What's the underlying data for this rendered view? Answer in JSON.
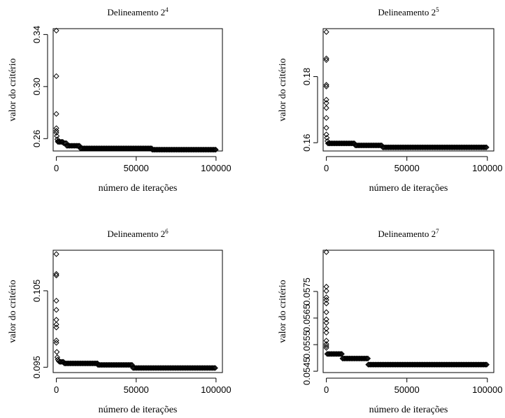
{
  "chart_data": [
    {
      "type": "scatter",
      "title": "Delineamento 2",
      "title_exponent": "4",
      "xlabel": "número de iterações",
      "ylabel": "valor do critério",
      "xlim": [
        -2000,
        104000
      ],
      "ylim": [
        0.2505,
        0.3445
      ],
      "xticks": [
        0,
        50000,
        100000
      ],
      "xtick_labels": [
        "0",
        "50000",
        "100000"
      ],
      "yticks": [
        0.26,
        0.3,
        0.34
      ],
      "ytick_labels": [
        "0.26",
        "0.30",
        "0.34"
      ],
      "grid": false,
      "marker": "open-diamond",
      "early_points": [
        {
          "x": 0,
          "y": 0.343
        },
        {
          "x": 0,
          "y": 0.308
        },
        {
          "x": 0,
          "y": 0.279
        },
        {
          "x": 0,
          "y": 0.268
        },
        {
          "x": 0,
          "y": 0.266
        },
        {
          "x": 0,
          "y": 0.2645
        },
        {
          "x": 300,
          "y": 0.262
        },
        {
          "x": 600,
          "y": 0.2595
        },
        {
          "x": 900,
          "y": 0.258
        }
      ],
      "plateaus": [
        {
          "x_start": 1000,
          "x_end": 4500,
          "y": 0.2575
        },
        {
          "x_start": 4500,
          "x_end": 6500,
          "y": 0.2565
        },
        {
          "x_start": 6500,
          "x_end": 15000,
          "y": 0.2545
        },
        {
          "x_start": 15000,
          "x_end": 60000,
          "y": 0.2525
        },
        {
          "x_start": 60000,
          "x_end": 100000,
          "y": 0.2515
        }
      ]
    },
    {
      "type": "scatter",
      "title": "Delineamento 2",
      "title_exponent": "5",
      "xlabel": "número de iterações",
      "ylabel": "valor do critério",
      "xlim": [
        -2000,
        104000
      ],
      "ylim": [
        0.1575,
        0.1945
      ],
      "xticks": [
        0,
        50000,
        100000
      ],
      "xtick_labels": [
        "0",
        "50000",
        "100000"
      ],
      "yticks": [
        0.16,
        0.18
      ],
      "ytick_labels": [
        "0.16",
        "0.18"
      ],
      "grid": false,
      "marker": "open-diamond",
      "early_points": [
        {
          "x": 0,
          "y": 0.1935
        },
        {
          "x": 0,
          "y": 0.1855
        },
        {
          "x": 0,
          "y": 0.185
        },
        {
          "x": 0,
          "y": 0.1775
        },
        {
          "x": 0,
          "y": 0.177
        },
        {
          "x": 0,
          "y": 0.173
        },
        {
          "x": 0,
          "y": 0.172
        },
        {
          "x": 0,
          "y": 0.1705
        },
        {
          "x": 0,
          "y": 0.1675
        },
        {
          "x": 0,
          "y": 0.1645
        },
        {
          "x": 0,
          "y": 0.1625
        },
        {
          "x": 300,
          "y": 0.1615
        },
        {
          "x": 600,
          "y": 0.1605
        }
      ],
      "plateaus": [
        {
          "x_start": 1000,
          "x_end": 18000,
          "y": 0.1598
        },
        {
          "x_start": 18000,
          "x_end": 35000,
          "y": 0.1592
        },
        {
          "x_start": 35000,
          "x_end": 100000,
          "y": 0.1586
        }
      ]
    },
    {
      "type": "scatter",
      "title": "Delineamento 2",
      "title_exponent": "6",
      "xlabel": "número de iterações",
      "ylabel": "valor do critério",
      "xlim": [
        -2000,
        104000
      ],
      "ylim": [
        0.0943,
        0.1103
      ],
      "xticks": [
        0,
        50000,
        100000
      ],
      "xtick_labels": [
        "0",
        "50000",
        "100000"
      ],
      "yticks": [
        0.095,
        0.105
      ],
      "ytick_labels": [
        "0.095",
        "0.105"
      ],
      "grid": false,
      "marker": "open-diamond",
      "early_points": [
        {
          "x": 0,
          "y": 0.1098
        },
        {
          "x": 0,
          "y": 0.1072
        },
        {
          "x": 0,
          "y": 0.107
        },
        {
          "x": 0,
          "y": 0.1037
        },
        {
          "x": 0,
          "y": 0.1025
        },
        {
          "x": 0,
          "y": 0.1012
        },
        {
          "x": 0,
          "y": 0.1006
        },
        {
          "x": 0,
          "y": 0.1002
        },
        {
          "x": 0,
          "y": 0.0985
        },
        {
          "x": 0,
          "y": 0.0982
        },
        {
          "x": 300,
          "y": 0.097
        },
        {
          "x": 600,
          "y": 0.0963
        },
        {
          "x": 900,
          "y": 0.096
        },
        {
          "x": 1500,
          "y": 0.0958
        }
      ],
      "plateaus": [
        {
          "x_start": 2000,
          "x_end": 5000,
          "y": 0.0957
        },
        {
          "x_start": 5000,
          "x_end": 26000,
          "y": 0.0955
        },
        {
          "x_start": 26000,
          "x_end": 48000,
          "y": 0.0953
        },
        {
          "x_start": 48000,
          "x_end": 100000,
          "y": 0.0949
        }
      ]
    },
    {
      "type": "scatter",
      "title": "Delineamento 2",
      "title_exponent": "7",
      "xlabel": "número de iterações",
      "ylabel": "valor do critério",
      "xlim": [
        -2000,
        104000
      ],
      "ylim": [
        0.05445,
        0.05905
      ],
      "xticks": [
        0,
        50000,
        100000
      ],
      "xtick_labels": [
        "0",
        "50000",
        "100000"
      ],
      "yticks": [
        0.0545,
        0.0555,
        0.0565,
        0.0575
      ],
      "ytick_labels": [
        "0.0545",
        "0.0555",
        "0.0565",
        "0.0575"
      ],
      "grid": false,
      "marker": "open-diamond",
      "early_points": [
        {
          "x": 0,
          "y": 0.05898
        },
        {
          "x": 0,
          "y": 0.05768
        },
        {
          "x": 0,
          "y": 0.05752
        },
        {
          "x": 0,
          "y": 0.05728
        },
        {
          "x": 0,
          "y": 0.05718
        },
        {
          "x": 0,
          "y": 0.05705
        },
        {
          "x": 0,
          "y": 0.05672
        },
        {
          "x": 0,
          "y": 0.05645
        },
        {
          "x": 0,
          "y": 0.05632
        },
        {
          "x": 0,
          "y": 0.0561
        },
        {
          "x": 0,
          "y": 0.05595
        },
        {
          "x": 0,
          "y": 0.05565
        },
        {
          "x": 0,
          "y": 0.05552
        },
        {
          "x": 0,
          "y": 0.05545
        },
        {
          "x": 0,
          "y": 0.05538
        }
      ],
      "plateaus": [
        {
          "x_start": 500,
          "x_end": 10000,
          "y": 0.05515
        },
        {
          "x_start": 10000,
          "x_end": 26000,
          "y": 0.05498
        },
        {
          "x_start": 26000,
          "x_end": 100000,
          "y": 0.05475
        }
      ]
    }
  ]
}
